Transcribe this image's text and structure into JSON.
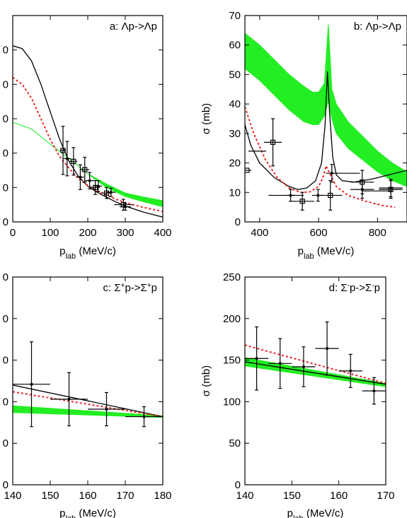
{
  "chart_data": [
    {
      "type": "line",
      "title": "a: Λp->Λp",
      "xlabel": "p",
      "xlabel_sub": "lab",
      "xlabel_unit": " (MeV/c)",
      "ylabel": "",
      "xlim": [
        0,
        400
      ],
      "ylim": [
        0,
        300
      ],
      "xticks": [
        0,
        100,
        200,
        300,
        400
      ],
      "yticks": [
        0,
        50,
        100,
        150,
        200,
        250
      ],
      "ytick_labels": [
        "0",
        "0",
        "0",
        "0",
        "0",
        "0"
      ],
      "band": {
        "x": [
          0,
          50,
          100,
          150,
          200,
          250,
          300,
          350,
          400
        ],
        "low": [
          145,
          135,
          113,
          92,
          70,
          50,
          37,
          29,
          22
        ],
        "high": [
          145,
          135,
          113,
          92,
          70,
          55,
          42,
          36,
          31
        ]
      },
      "series": [
        {
          "style": "solid-black",
          "x": [
            0,
            25,
            50,
            75,
            100,
            125,
            150,
            175,
            200,
            225,
            250,
            275,
            300,
            350,
            400
          ],
          "y": [
            256,
            252,
            234,
            200,
            160,
            120,
            88,
            66,
            52,
            43,
            36,
            29,
            23,
            14,
            7
          ]
        },
        {
          "style": "dotted-red",
          "x": [
            0,
            25,
            50,
            75,
            100,
            125,
            150,
            175,
            200,
            225,
            250,
            275,
            300,
            350,
            400
          ],
          "y": [
            210,
            200,
            180,
            150,
            120,
            95,
            78,
            63,
            53,
            45,
            39,
            33,
            28,
            21,
            15
          ]
        }
      ],
      "points": [
        {
          "x": 134,
          "y": 104,
          "xerr": 8,
          "yerr": 35,
          "marker": "square"
        },
        {
          "x": 145,
          "y": 92,
          "xerr": 10,
          "yerr": 25,
          "marker": "dot"
        },
        {
          "x": 162,
          "y": 88,
          "xerr": 10,
          "yerr": 20,
          "marker": "square"
        },
        {
          "x": 180,
          "y": 65,
          "xerr": 10,
          "yerr": 18,
          "marker": "dot"
        },
        {
          "x": 192,
          "y": 76,
          "xerr": 12,
          "yerr": 18,
          "marker": "square"
        },
        {
          "x": 205,
          "y": 60,
          "xerr": 12,
          "yerr": 12,
          "marker": "dot"
        },
        {
          "x": 220,
          "y": 50,
          "xerr": 12,
          "yerr": 10,
          "marker": "square"
        },
        {
          "x": 228,
          "y": 52,
          "xerr": 10,
          "yerr": 8,
          "marker": "dot"
        },
        {
          "x": 250,
          "y": 42,
          "xerr": 12,
          "yerr": 8,
          "marker": "square"
        },
        {
          "x": 262,
          "y": 43,
          "xerr": 12,
          "yerr": 6,
          "marker": "dot"
        },
        {
          "x": 295,
          "y": 25,
          "xerr": 25,
          "yerr": 8,
          "marker": "square"
        },
        {
          "x": 300,
          "y": 22,
          "xerr": 15,
          "yerr": 5,
          "marker": "dot"
        }
      ]
    },
    {
      "type": "line",
      "title": "b: Λp->Λp",
      "xlabel": "p",
      "xlabel_sub": "lab",
      "xlabel_unit": " (MeV/c)",
      "ylabel": "σ (mb)",
      "xlim": [
        350,
        900
      ],
      "ylim": [
        0,
        70
      ],
      "xticks": [
        400,
        600,
        800
      ],
      "yticks": [
        0,
        10,
        20,
        30,
        40,
        50,
        60,
        70
      ],
      "band": {
        "x": [
          350,
          400,
          450,
          500,
          550,
          580,
          600,
          620,
          633,
          645,
          660,
          700,
          750,
          800,
          850,
          900
        ],
        "low": [
          52,
          48,
          43,
          38,
          34,
          33,
          33,
          36,
          41,
          35,
          30,
          25,
          21,
          17,
          14,
          12
        ],
        "high": [
          64,
          60,
          55,
          50,
          46,
          44,
          44,
          47,
          67,
          45,
          40,
          34,
          29,
          24,
          20,
          17
        ]
      },
      "series": [
        {
          "style": "solid-black",
          "x": [
            350,
            370,
            400,
            450,
            500,
            530,
            560,
            590,
            610,
            622,
            630,
            638,
            648,
            660,
            680,
            720,
            780,
            840,
            900
          ],
          "y": [
            33,
            26,
            20,
            15,
            12,
            11,
            11.5,
            14,
            20,
            33,
            51,
            36,
            22,
            16,
            14,
            13.5,
            14.5,
            16,
            17.5
          ]
        },
        {
          "style": "dotted-red",
          "x": [
            350,
            380,
            420,
            460,
            500,
            540,
            570,
            600,
            615,
            625,
            640,
            660,
            700,
            760,
            820,
            860
          ],
          "y": [
            39,
            30,
            21,
            15,
            11.5,
            10,
            10.2,
            12,
            15,
            19,
            16,
            12,
            9,
            7,
            5.5,
            5
          ]
        }
      ],
      "points": [
        {
          "x": 357,
          "y": 17.5,
          "xerr": 15,
          "yerr": 0,
          "marker": "square"
        },
        {
          "x": 392,
          "y": 24,
          "xerr": 30,
          "yerr": 0,
          "marker": "none"
        },
        {
          "x": 445,
          "y": 27,
          "xerr": 30,
          "yerr": 8,
          "marker": "square"
        },
        {
          "x": 490,
          "y": 9,
          "xerr": 60,
          "yerr": 0,
          "marker": "none"
        },
        {
          "x": 505,
          "y": 9,
          "xerr": 15,
          "yerr": 2,
          "marker": "dot"
        },
        {
          "x": 545,
          "y": 7,
          "xerr": 40,
          "yerr": 3,
          "marker": "square"
        },
        {
          "x": 598,
          "y": 9,
          "xerr": 20,
          "yerr": 2,
          "marker": "dot"
        },
        {
          "x": 640,
          "y": 9,
          "xerr": 40,
          "yerr": 5,
          "marker": "square"
        },
        {
          "x": 645,
          "y": 16.5,
          "xerr": 20,
          "yerr": 3,
          "marker": "dot"
        },
        {
          "x": 700,
          "y": 16.5,
          "xerr": 40,
          "yerr": 0,
          "marker": "none"
        },
        {
          "x": 748,
          "y": 13.5,
          "xerr": 40,
          "yerr": 4,
          "marker": "square"
        },
        {
          "x": 748,
          "y": 11,
          "xerr": 40,
          "yerr": 3,
          "marker": "dot"
        },
        {
          "x": 800,
          "y": 10.5,
          "xerr": 50,
          "yerr": 0,
          "marker": "none"
        },
        {
          "x": 845,
          "y": 11,
          "xerr": 40,
          "yerr": 3,
          "marker": "square"
        },
        {
          "x": 845,
          "y": 11.5,
          "xerr": 40,
          "yerr": 3,
          "marker": "dot"
        }
      ]
    },
    {
      "type": "line",
      "title_parts": [
        "c: Σ",
        "+",
        "p->Σ",
        "+",
        "p"
      ],
      "xlabel": "p",
      "xlabel_sub": "lab",
      "xlabel_unit": " (MeV/c)",
      "ylabel": "",
      "xlim": [
        140,
        180
      ],
      "ylim": [
        0,
        250
      ],
      "xticks": [
        140,
        150,
        160,
        170,
        180
      ],
      "yticks": [
        0,
        50,
        100,
        150,
        200,
        250
      ],
      "ytick_labels": [
        "0",
        "0",
        "0",
        "0",
        "0",
        "0"
      ],
      "band": {
        "x": [
          140,
          180
        ],
        "low": [
          87,
          81
        ],
        "high": [
          95,
          83
        ]
      },
      "series": [
        {
          "style": "solid-black",
          "x": [
            140,
            180
          ],
          "y": [
            120,
            82
          ]
        },
        {
          "style": "dotted-red",
          "x": [
            140,
            180
          ],
          "y": [
            112,
            82
          ]
        }
      ],
      "points": [
        {
          "x": 145,
          "y": 121,
          "xerr": 5,
          "yerr": 51,
          "marker": "dot"
        },
        {
          "x": 155,
          "y": 103,
          "xerr": 5,
          "yerr": 32,
          "marker": "dot"
        },
        {
          "x": 165,
          "y": 91,
          "xerr": 5,
          "yerr": 20,
          "marker": "dot"
        },
        {
          "x": 175,
          "y": 82,
          "xerr": 5,
          "yerr": 12,
          "marker": "dot"
        }
      ]
    },
    {
      "type": "line",
      "title_parts": [
        "d: Σ",
        "-",
        "p->Σ",
        "-",
        "p"
      ],
      "xlabel": "p",
      "xlabel_sub": "lab",
      "xlabel_unit": " (MeV/c)",
      "ylabel": "σ (mb)",
      "xlim": [
        140,
        170
      ],
      "ylim": [
        0,
        250
      ],
      "xticks": [
        140,
        150,
        160,
        170
      ],
      "yticks": [
        0,
        50,
        100,
        150,
        200,
        250
      ],
      "band": {
        "x": [
          140,
          170
        ],
        "low": [
          143,
          118
        ],
        "high": [
          153,
          122
        ]
      },
      "series": [
        {
          "style": "solid-black",
          "x": [
            140,
            170
          ],
          "y": [
            148,
            121
          ]
        },
        {
          "style": "dotted-red",
          "x": [
            140,
            170
          ],
          "y": [
            168,
            122
          ]
        }
      ],
      "points": [
        {
          "x": 142.5,
          "y": 152,
          "xerr": 2.5,
          "yerr": 38,
          "marker": "dot"
        },
        {
          "x": 147.5,
          "y": 146,
          "xerr": 2.5,
          "yerr": 30,
          "marker": "dot"
        },
        {
          "x": 152.5,
          "y": 142,
          "xerr": 2.5,
          "yerr": 24,
          "marker": "dot"
        },
        {
          "x": 157.5,
          "y": 164,
          "xerr": 2.5,
          "yerr": 32,
          "marker": "dot"
        },
        {
          "x": 162.5,
          "y": 137,
          "xerr": 2.5,
          "yerr": 20,
          "marker": "dot"
        },
        {
          "x": 167.5,
          "y": 113,
          "xerr": 2.5,
          "yerr": 16,
          "marker": "dot"
        }
      ]
    }
  ],
  "colors": {
    "band": "#22ee22",
    "model_solid": "#000000",
    "model_dotted": "#ee2222",
    "data": "#000000"
  }
}
